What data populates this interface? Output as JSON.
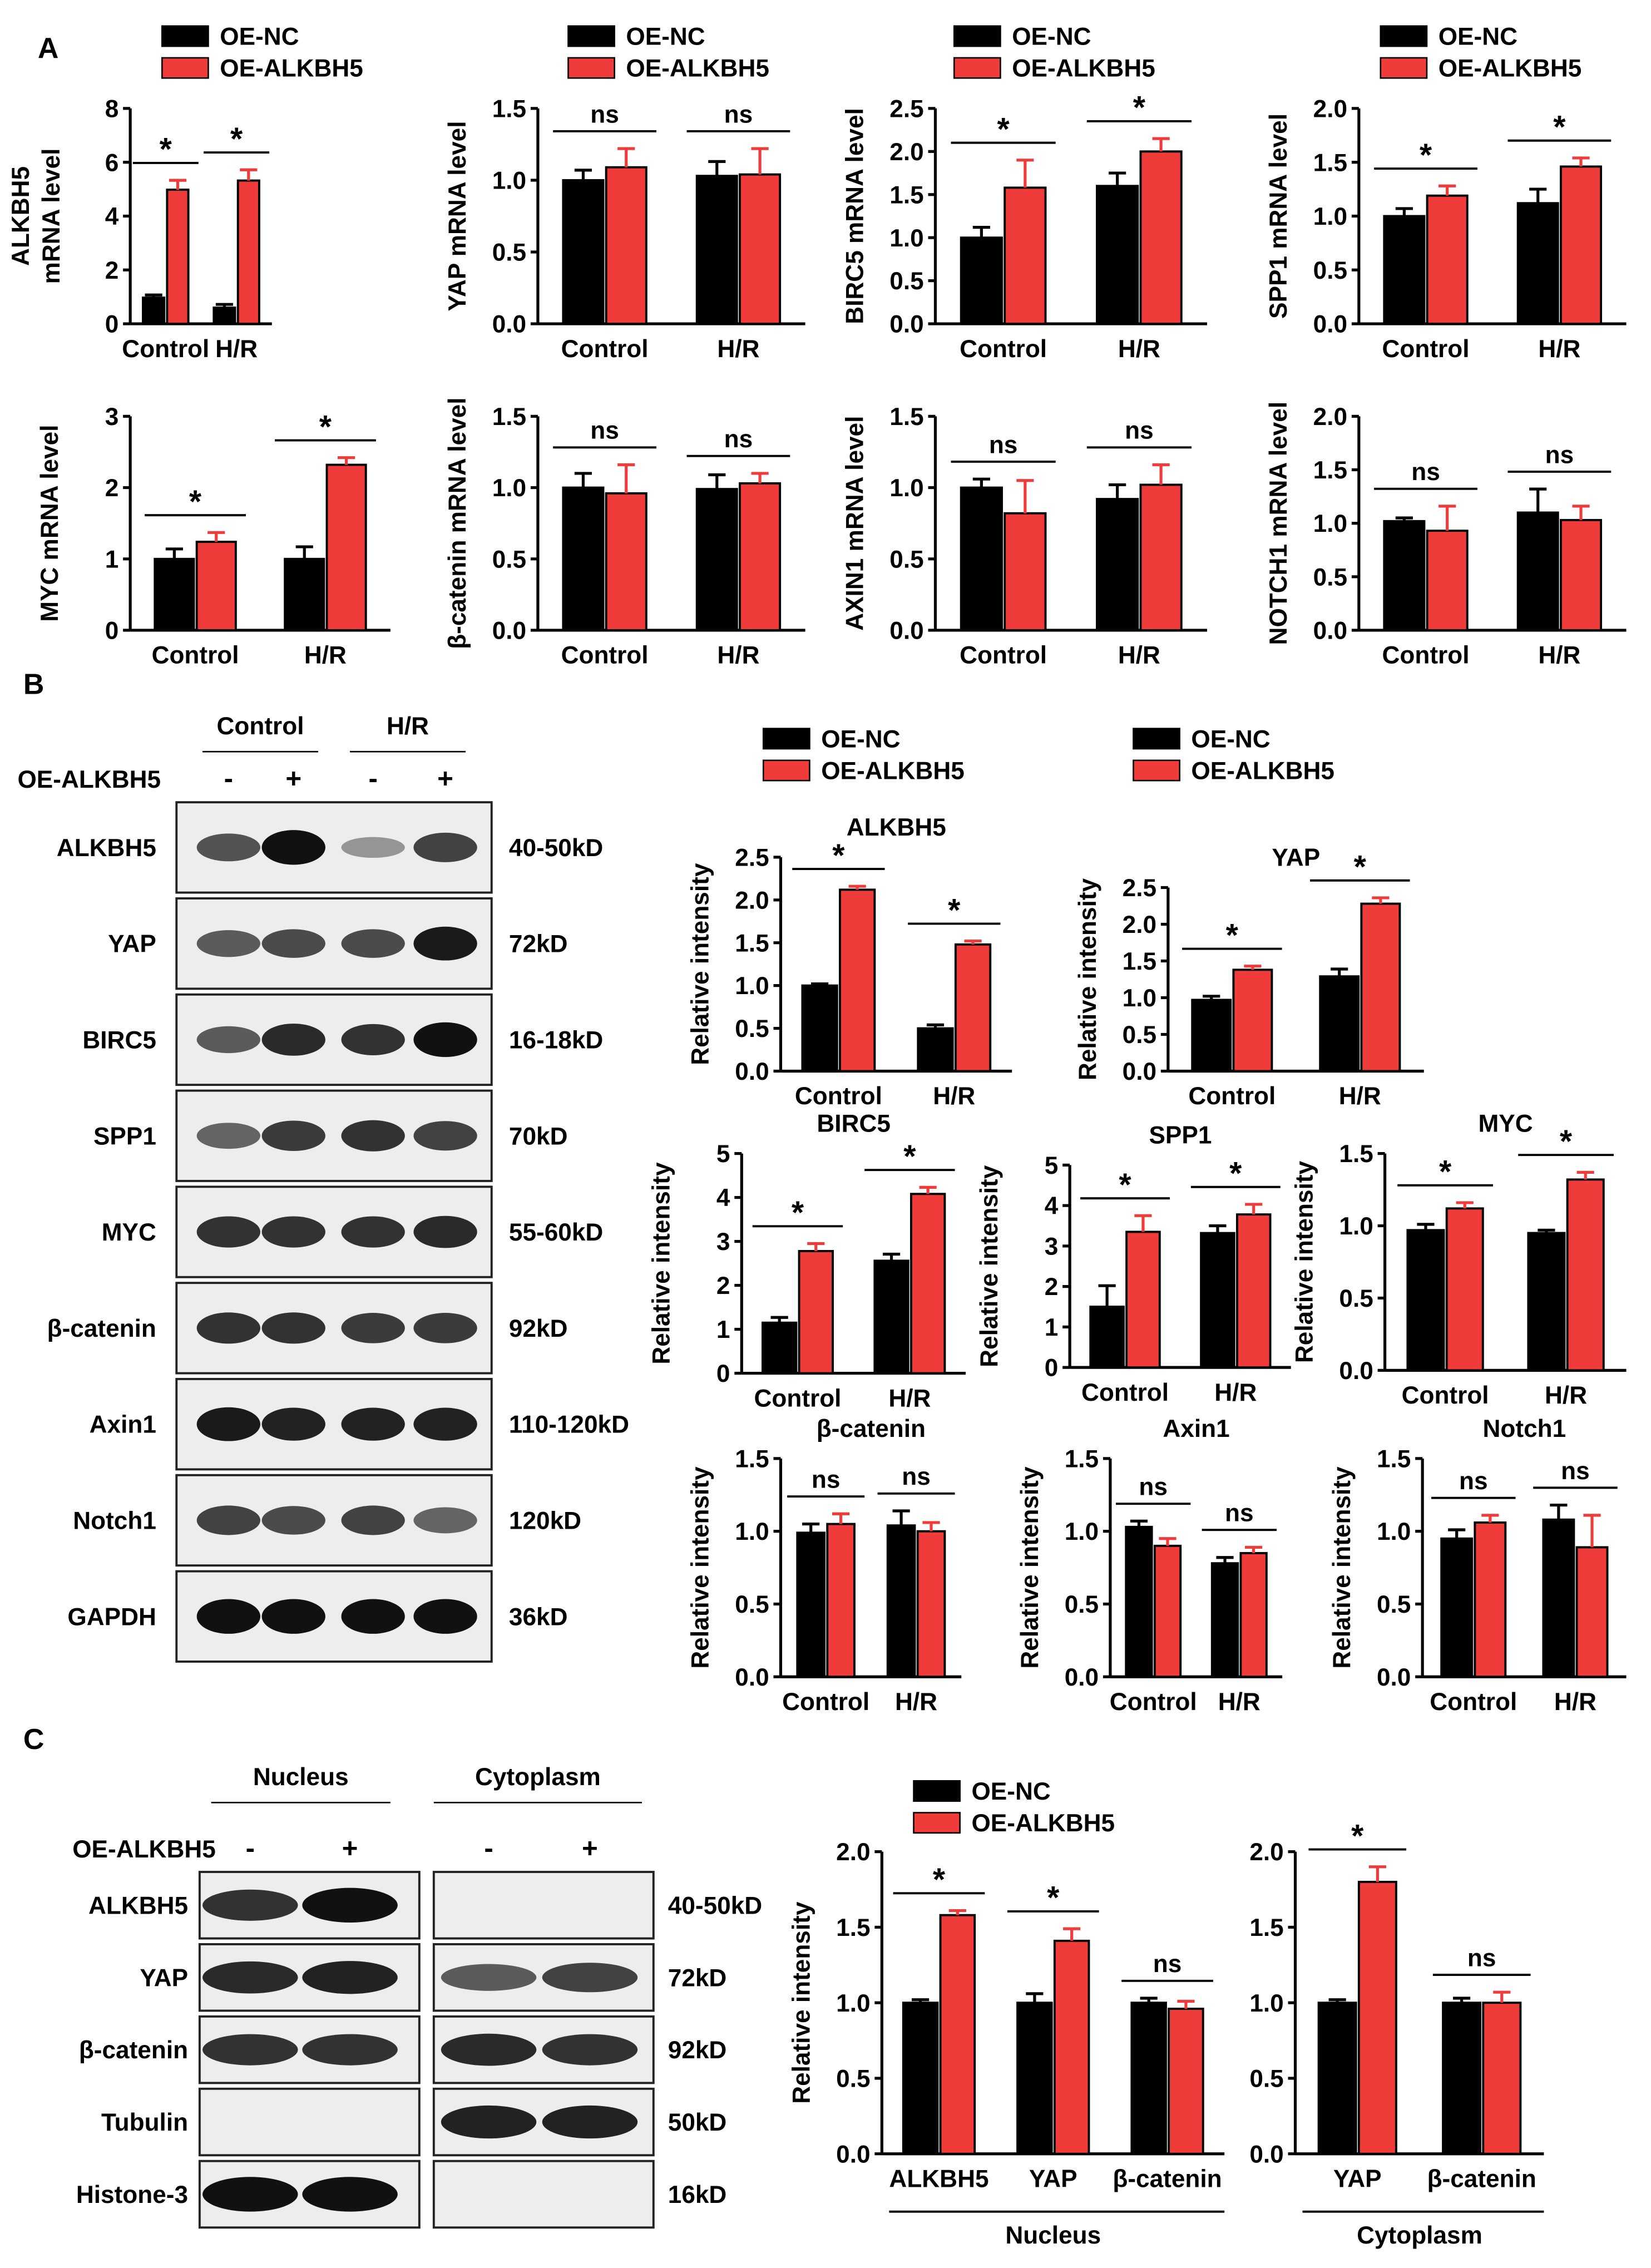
{
  "panel_letters": {
    "a": "A",
    "b": "B",
    "c": "C"
  },
  "legend": {
    "nc": "OE-NC",
    "alk": "OE-ALKBH5"
  },
  "colors": {
    "nc": "#000000",
    "alk": "#f03b3b",
    "axis": "#000000",
    "blot_bg": "#ededed"
  },
  "chart_data": [
    {
      "id": "A1",
      "type": "bar",
      "panel": "A",
      "ylabel": [
        "ALKBH5",
        "mRNA level"
      ],
      "ylim": [
        0,
        8
      ],
      "yticks": [
        0,
        2,
        4,
        6,
        8
      ],
      "categories": [
        "Control",
        "H/R"
      ],
      "series": [
        {
          "name": "OE-NC",
          "values": [
            0.97,
            0.6
          ],
          "errors": [
            0.1,
            0.12
          ]
        },
        {
          "name": "OE-ALKBH5",
          "values": [
            4.98,
            5.32
          ],
          "errors": [
            0.35,
            0.4
          ]
        }
      ],
      "significance": [
        "*",
        "*"
      ],
      "legend": true
    },
    {
      "id": "A2",
      "type": "bar",
      "panel": "A",
      "ylabel": [
        "YAP mRNA level"
      ],
      "ylim": [
        0,
        1.5
      ],
      "yticks": [
        0.0,
        0.5,
        1.0,
        1.5
      ],
      "categories": [
        "Control",
        "H/R"
      ],
      "series": [
        {
          "name": "OE-NC",
          "values": [
            1.0,
            1.03
          ],
          "errors": [
            0.07,
            0.1
          ]
        },
        {
          "name": "OE-ALKBH5",
          "values": [
            1.09,
            1.04
          ],
          "errors": [
            0.13,
            0.18
          ]
        }
      ],
      "significance": [
        "ns",
        "ns"
      ],
      "legend": true
    },
    {
      "id": "A3",
      "type": "bar",
      "panel": "A",
      "ylabel": [
        "BIRC5 mRNA level"
      ],
      "ylim": [
        0,
        2.5
      ],
      "yticks": [
        0.0,
        0.5,
        1.0,
        1.5,
        2.0,
        2.5
      ],
      "categories": [
        "Control",
        "H/R"
      ],
      "series": [
        {
          "name": "OE-NC",
          "values": [
            1.0,
            1.6
          ],
          "errors": [
            0.12,
            0.15
          ]
        },
        {
          "name": "OE-ALKBH5",
          "values": [
            1.58,
            2.0
          ],
          "errors": [
            0.32,
            0.15
          ]
        }
      ],
      "significance": [
        "*",
        "*"
      ],
      "legend": true
    },
    {
      "id": "A4",
      "type": "bar",
      "panel": "A",
      "ylabel": [
        "SPP1 mRNA level"
      ],
      "ylim": [
        0,
        2.0
      ],
      "yticks": [
        0.0,
        0.5,
        1.0,
        1.5,
        2.0
      ],
      "categories": [
        "Control",
        "H/R"
      ],
      "series": [
        {
          "name": "OE-NC",
          "values": [
            1.0,
            1.12
          ],
          "errors": [
            0.07,
            0.13
          ]
        },
        {
          "name": "OE-ALKBH5",
          "values": [
            1.19,
            1.46
          ],
          "errors": [
            0.09,
            0.08
          ]
        }
      ],
      "significance": [
        "*",
        "*"
      ],
      "legend": true
    },
    {
      "id": "A5",
      "type": "bar",
      "panel": "A",
      "ylabel": [
        "MYC mRNA level"
      ],
      "ylim": [
        0,
        3
      ],
      "yticks": [
        0,
        1,
        2,
        3
      ],
      "categories": [
        "Control",
        "H/R"
      ],
      "series": [
        {
          "name": "OE-NC",
          "values": [
            1.0,
            1.0
          ],
          "errors": [
            0.14,
            0.17
          ]
        },
        {
          "name": "OE-ALKBH5",
          "values": [
            1.24,
            2.32
          ],
          "errors": [
            0.13,
            0.1
          ]
        }
      ],
      "significance": [
        "*",
        "*"
      ],
      "legend": false
    },
    {
      "id": "A6",
      "type": "bar",
      "panel": "A",
      "ylabel": [
        "β-catenin mRNA level"
      ],
      "ylim": [
        0,
        1.5
      ],
      "yticks": [
        0.0,
        0.5,
        1.0,
        1.5
      ],
      "categories": [
        "Control",
        "H/R"
      ],
      "series": [
        {
          "name": "OE-NC",
          "values": [
            1.0,
            0.99
          ],
          "errors": [
            0.1,
            0.1
          ]
        },
        {
          "name": "OE-ALKBH5",
          "values": [
            0.96,
            1.03
          ],
          "errors": [
            0.2,
            0.07
          ]
        }
      ],
      "significance": [
        "ns",
        "ns"
      ],
      "legend": false
    },
    {
      "id": "A7",
      "type": "bar",
      "panel": "A",
      "ylabel": [
        "AXIN1 mRNA level"
      ],
      "ylim": [
        0,
        1.5
      ],
      "yticks": [
        0.0,
        0.5,
        1.0,
        1.5
      ],
      "categories": [
        "Control",
        "H/R"
      ],
      "series": [
        {
          "name": "OE-NC",
          "values": [
            1.0,
            0.92
          ],
          "errors": [
            0.06,
            0.1
          ]
        },
        {
          "name": "OE-ALKBH5",
          "values": [
            0.82,
            1.02
          ],
          "errors": [
            0.23,
            0.14
          ]
        }
      ],
      "significance": [
        "ns",
        "ns"
      ],
      "legend": false
    },
    {
      "id": "A8",
      "type": "bar",
      "panel": "A",
      "ylabel": [
        "NOTCH1 mRNA level"
      ],
      "ylim": [
        0,
        2.0
      ],
      "yticks": [
        0.0,
        0.5,
        1.0,
        1.5,
        2.0
      ],
      "categories": [
        "Control",
        "H/R"
      ],
      "series": [
        {
          "name": "OE-NC",
          "values": [
            1.02,
            1.1
          ],
          "errors": [
            0.03,
            0.22
          ]
        },
        {
          "name": "OE-ALKBH5",
          "values": [
            0.93,
            1.03
          ],
          "errors": [
            0.23,
            0.13
          ]
        }
      ],
      "significance": [
        "ns",
        "ns"
      ],
      "legend": false
    },
    {
      "id": "B1",
      "type": "bar",
      "panel": "B",
      "title": "ALKBH5",
      "ylabel": [
        "Relative intensity"
      ],
      "ylim": [
        0,
        2.5
      ],
      "yticks": [
        0.0,
        0.5,
        1.0,
        1.5,
        2.0,
        2.5
      ],
      "categories": [
        "Control",
        "H/R"
      ],
      "series": [
        {
          "name": "OE-NC",
          "values": [
            1.0,
            0.5
          ],
          "errors": [
            0.02,
            0.04
          ]
        },
        {
          "name": "OE-ALKBH5",
          "values": [
            2.12,
            1.48
          ],
          "errors": [
            0.04,
            0.04
          ]
        }
      ],
      "significance": [
        "*",
        "*"
      ],
      "legend": true
    },
    {
      "id": "B2",
      "type": "bar",
      "panel": "B",
      "title": "YAP",
      "ylabel": [
        "Relative intensity"
      ],
      "ylim": [
        0,
        2.5
      ],
      "yticks": [
        0.0,
        0.5,
        1.0,
        1.5,
        2.0,
        2.5
      ],
      "categories": [
        "Control",
        "H/R"
      ],
      "series": [
        {
          "name": "OE-NC",
          "values": [
            0.97,
            1.29
          ],
          "errors": [
            0.05,
            0.1
          ]
        },
        {
          "name": "OE-ALKBH5",
          "values": [
            1.38,
            2.28
          ],
          "errors": [
            0.05,
            0.08
          ]
        }
      ],
      "significance": [
        "*",
        "*"
      ],
      "legend": true
    },
    {
      "id": "B3",
      "type": "bar",
      "panel": "B",
      "title": "BIRC5",
      "ylabel": [
        "Relative intensity"
      ],
      "ylim": [
        0,
        5
      ],
      "yticks": [
        0,
        1,
        2,
        3,
        4,
        5
      ],
      "categories": [
        "Control",
        "H/R"
      ],
      "series": [
        {
          "name": "OE-NC",
          "values": [
            1.15,
            2.56
          ],
          "errors": [
            0.12,
            0.15
          ]
        },
        {
          "name": "OE-ALKBH5",
          "values": [
            2.78,
            4.08
          ],
          "errors": [
            0.17,
            0.15
          ]
        }
      ],
      "significance": [
        "*",
        "*"
      ],
      "legend": false
    },
    {
      "id": "B4",
      "type": "bar",
      "panel": "B",
      "title": "SPP1",
      "ylabel": [
        "Relative intensity"
      ],
      "ylim": [
        0,
        5
      ],
      "yticks": [
        0,
        1,
        2,
        3,
        4,
        5
      ],
      "categories": [
        "Control",
        "H/R"
      ],
      "series": [
        {
          "name": "OE-NC",
          "values": [
            1.5,
            3.32
          ],
          "errors": [
            0.52,
            0.18
          ]
        },
        {
          "name": "OE-ALKBH5",
          "values": [
            3.35,
            3.78
          ],
          "errors": [
            0.4,
            0.25
          ]
        }
      ],
      "significance": [
        "*",
        "*"
      ],
      "legend": false
    },
    {
      "id": "B5",
      "type": "bar",
      "panel": "B",
      "title": "MYC",
      "ylabel": [
        "Relative intensity"
      ],
      "ylim": [
        0,
        1.5
      ],
      "yticks": [
        0.0,
        0.5,
        1.0,
        1.5
      ],
      "categories": [
        "Control",
        "H/R"
      ],
      "series": [
        {
          "name": "OE-NC",
          "values": [
            0.97,
            0.95
          ],
          "errors": [
            0.04,
            0.02
          ]
        },
        {
          "name": "OE-ALKBH5",
          "values": [
            1.12,
            1.32
          ],
          "errors": [
            0.04,
            0.05
          ]
        }
      ],
      "significance": [
        "*",
        "*"
      ],
      "legend": false
    },
    {
      "id": "B6",
      "type": "bar",
      "panel": "B",
      "title": "β-catenin",
      "ylabel": [
        "Relative intensity"
      ],
      "ylim": [
        0,
        1.5
      ],
      "yticks": [
        0.0,
        0.5,
        1.0,
        1.5
      ],
      "categories": [
        "Control",
        "H/R"
      ],
      "series": [
        {
          "name": "OE-NC",
          "values": [
            0.99,
            1.04
          ],
          "errors": [
            0.06,
            0.1
          ]
        },
        {
          "name": "OE-ALKBH5",
          "values": [
            1.05,
            1.0
          ],
          "errors": [
            0.07,
            0.06
          ]
        }
      ],
      "significance": [
        "ns",
        "ns"
      ],
      "legend": false
    },
    {
      "id": "B7",
      "type": "bar",
      "panel": "B",
      "title": "Axin1",
      "ylabel": [
        "Relative intensity"
      ],
      "ylim": [
        0,
        1.5
      ],
      "yticks": [
        0.0,
        0.5,
        1.0,
        1.5
      ],
      "categories": [
        "Control",
        "H/R"
      ],
      "series": [
        {
          "name": "OE-NC",
          "values": [
            1.03,
            0.78
          ],
          "errors": [
            0.04,
            0.04
          ]
        },
        {
          "name": "OE-ALKBH5",
          "values": [
            0.9,
            0.85
          ],
          "errors": [
            0.05,
            0.04
          ]
        }
      ],
      "significance": [
        "ns",
        "ns"
      ],
      "legend": false
    },
    {
      "id": "B8",
      "type": "bar",
      "panel": "B",
      "title": "Notch1",
      "ylabel": [
        "Relative intensity"
      ],
      "ylim": [
        0,
        1.5
      ],
      "yticks": [
        0.0,
        0.5,
        1.0,
        1.5
      ],
      "categories": [
        "Control",
        "H/R"
      ],
      "series": [
        {
          "name": "OE-NC",
          "values": [
            0.95,
            1.08
          ],
          "errors": [
            0.06,
            0.1
          ]
        },
        {
          "name": "OE-ALKBH5",
          "values": [
            1.06,
            0.89
          ],
          "errors": [
            0.05,
            0.22
          ]
        }
      ],
      "significance": [
        "ns",
        "ns"
      ],
      "legend": false
    },
    {
      "id": "C1",
      "type": "bar",
      "panel": "C",
      "ylabel": [
        "Relative intensity"
      ],
      "ylim": [
        0,
        2.0
      ],
      "yticks": [
        0.0,
        0.5,
        1.0,
        1.5,
        2.0
      ],
      "categories": [
        "ALKBH5",
        "YAP",
        "β-catenin"
      ],
      "group_label": "Nucleus",
      "series": [
        {
          "name": "OE-NC",
          "values": [
            1.0,
            1.0,
            1.0
          ],
          "errors": [
            0.02,
            0.06,
            0.03
          ]
        },
        {
          "name": "OE-ALKBH5",
          "values": [
            1.58,
            1.41,
            0.96
          ],
          "errors": [
            0.03,
            0.08,
            0.05
          ]
        }
      ],
      "significance": [
        "*",
        "*",
        "ns"
      ],
      "legend": true
    },
    {
      "id": "C2",
      "type": "bar",
      "panel": "C",
      "ylabel": [],
      "ylim": [
        0,
        2.0
      ],
      "yticks": [
        0.0,
        0.5,
        1.0,
        1.5,
        2.0
      ],
      "categories": [
        "YAP",
        "β-catenin"
      ],
      "group_label": "Cytoplasm",
      "series": [
        {
          "name": "OE-NC",
          "values": [
            1.0,
            1.0
          ],
          "errors": [
            0.02,
            0.03
          ]
        },
        {
          "name": "OE-ALKBH5",
          "values": [
            1.8,
            1.0
          ],
          "errors": [
            0.1,
            0.07
          ]
        }
      ],
      "significance": [
        "*",
        "ns"
      ],
      "legend": false
    }
  ],
  "blot_b": {
    "groups": [
      "Control",
      "H/R"
    ],
    "row_header": "OE-ALKBH5",
    "lane_signs": [
      "-",
      "+",
      "-",
      "+"
    ],
    "rows": [
      {
        "protein": "ALKBH5",
        "size": "40-50kD",
        "intensity": [
          0.6,
          1.0,
          0.2,
          0.7
        ]
      },
      {
        "protein": "YAP",
        "size": "72kD",
        "intensity": [
          0.55,
          0.65,
          0.65,
          0.95
        ]
      },
      {
        "protein": "BIRC5",
        "size": "16-18kD",
        "intensity": [
          0.55,
          0.85,
          0.8,
          1.0
        ]
      },
      {
        "protein": "SPP1",
        "size": "70kD",
        "intensity": [
          0.5,
          0.75,
          0.8,
          0.7
        ]
      },
      {
        "protein": "MYC",
        "size": "55-60kD",
        "intensity": [
          0.8,
          0.8,
          0.8,
          0.85
        ]
      },
      {
        "protein": "β-catenin",
        "size": "92kD",
        "intensity": [
          0.8,
          0.8,
          0.75,
          0.75
        ]
      },
      {
        "protein": "Axin1",
        "size": "110-120kD",
        "intensity": [
          0.95,
          0.9,
          0.9,
          0.9
        ]
      },
      {
        "protein": "Notch1",
        "size": "120kD",
        "intensity": [
          0.7,
          0.65,
          0.7,
          0.5
        ]
      },
      {
        "protein": "GAPDH",
        "size": "36kD",
        "intensity": [
          1.0,
          1.0,
          1.0,
          1.0
        ]
      }
    ]
  },
  "blot_c": {
    "groups": [
      "Nucleus",
      "Cytoplasm"
    ],
    "row_header": "OE-ALKBH5",
    "lane_signs": [
      "-",
      "+",
      "-",
      "+"
    ],
    "rows": [
      {
        "protein": "ALKBH5",
        "size": "40-50kD",
        "intensity": [
          0.8,
          1.0,
          0,
          0
        ]
      },
      {
        "protein": "YAP",
        "size": "72kD",
        "intensity": [
          0.85,
          0.9,
          0.55,
          0.7
        ]
      },
      {
        "protein": "β-catenin",
        "size": "92kD",
        "intensity": [
          0.8,
          0.8,
          0.85,
          0.8
        ]
      },
      {
        "protein": "Tubulin",
        "size": "50kD",
        "intensity": [
          0,
          0,
          0.9,
          0.9
        ]
      },
      {
        "protein": "Histone-3",
        "size": "16kD",
        "intensity": [
          1.0,
          1.0,
          0,
          0
        ]
      }
    ]
  }
}
